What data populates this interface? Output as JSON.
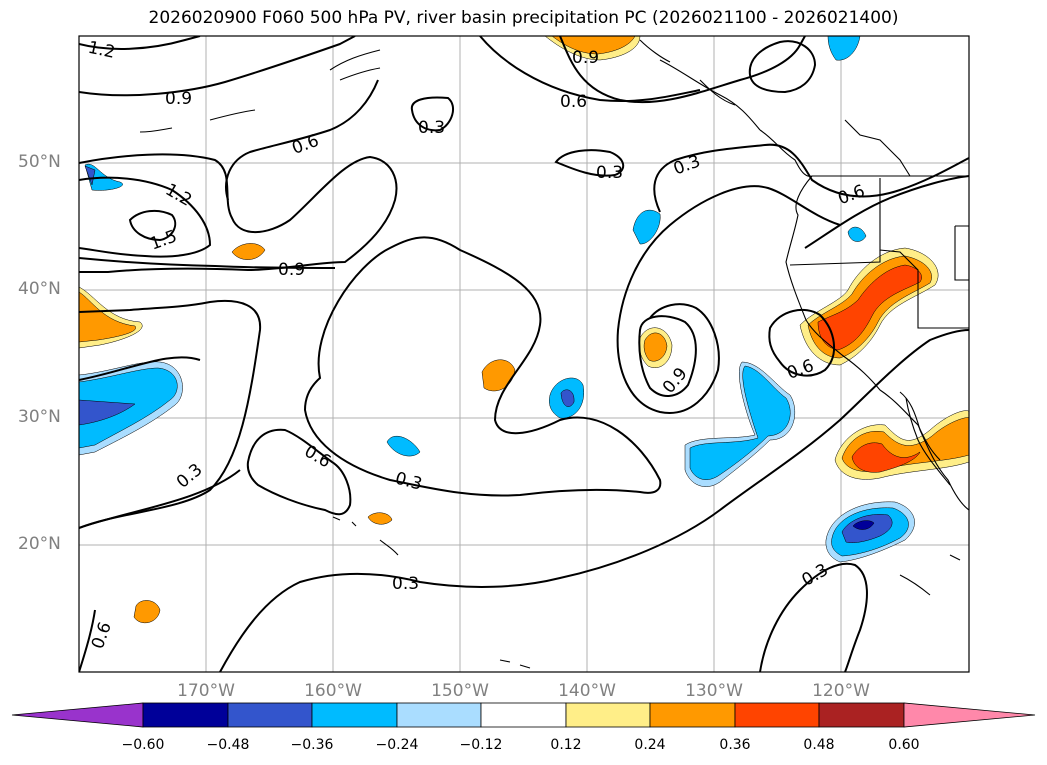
{
  "title": "2026020900 F060 500 hPa PV, river basin precipitation PC (2026021100 - 2026021400)",
  "lat_labels": [
    "50°N",
    "40°N",
    "30°N",
    "20°N"
  ],
  "lon_labels": [
    "170°W",
    "160°W",
    "150°W",
    "140°W",
    "130°W",
    "120°W"
  ],
  "contour_labels": [
    "1.2",
    "0.9",
    "0.9",
    "0.3",
    "0.6",
    "0.6",
    "0.3",
    "0.3",
    "1.2",
    "1.5",
    "0.9",
    "0.6",
    "0.9",
    "0.6",
    "0.6",
    "0.3",
    "0.3",
    "0.3",
    "0.3",
    "0.6"
  ],
  "colorbar": {
    "ticks": [
      "−0.60",
      "−0.48",
      "−0.36",
      "−0.24",
      "−0.12",
      "0.12",
      "0.24",
      "0.36",
      "0.48",
      "0.60"
    ],
    "colors": [
      "#9933cc",
      "#000099",
      "#3355cc",
      "#00bbff",
      "#aaddff",
      "#ffffff",
      "#ffee88",
      "#ff9900",
      "#ff4400",
      "#aa2222",
      "#ff88aa"
    ]
  },
  "fill_colors": {
    "neg1": "#aaddff",
    "neg2": "#00bbff",
    "neg3": "#3355cc",
    "neg4": "#000099",
    "pos1": "#ffee88",
    "pos2": "#ff9900",
    "pos3": "#ff4400"
  }
}
